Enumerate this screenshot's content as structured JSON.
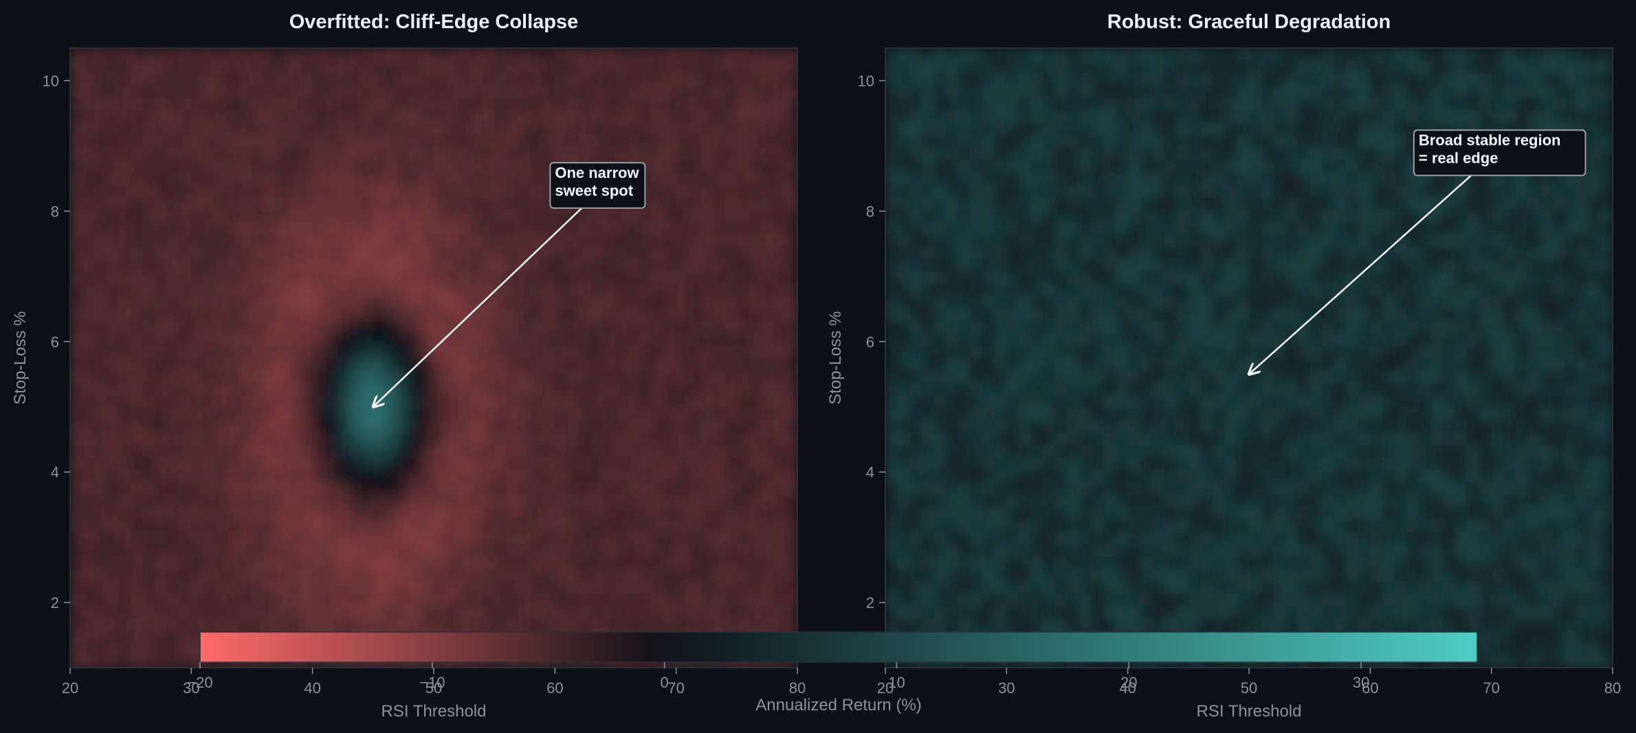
{
  "colors": {
    "background": "#0d1117",
    "negative": "#ff6b6b",
    "neutral": "#0d1117",
    "positive": "#4ecdc4",
    "annotation_border": "#9aa0a8"
  },
  "chart_data": [
    {
      "type": "heatmap",
      "title": "Overfitted: Cliff-Edge Collapse",
      "xlabel": "RSI Threshold",
      "ylabel": "Stop-Loss %",
      "xlim": [
        20,
        80
      ],
      "ylim": [
        1,
        10.5
      ],
      "xticks": [
        20,
        30,
        40,
        50,
        60,
        70,
        80
      ],
      "yticks": [
        2,
        4,
        6,
        8,
        10
      ],
      "surface": {
        "baseline": -5,
        "noise": 1.5,
        "peak": {
          "x": 45,
          "y": 5,
          "value": 30,
          "sx": 3,
          "sy": 0.9
        },
        "moat": {
          "x": 45,
          "y": 5,
          "value": -12,
          "sx": 5.5,
          "sy": 1.8
        }
      },
      "annotation": {
        "lines": [
          "One narrow",
          "sweet spot"
        ],
        "point": [
          45,
          5
        ],
        "text_at": [
          60,
          8.3
        ]
      }
    },
    {
      "type": "heatmap",
      "title": "Robust: Graceful Degradation",
      "xlabel": "RSI Threshold",
      "ylabel": "Stop-Loss %",
      "xlim": [
        20,
        80
      ],
      "ylim": [
        1,
        10.5
      ],
      "xticks": [
        20,
        30,
        40,
        50,
        60,
        70,
        80
      ],
      "yticks": [
        2,
        4,
        6,
        8,
        10
      ],
      "surface": {
        "baseline": 6,
        "noise": 3.5
      },
      "annotation": {
        "lines": [
          "Broad stable region",
          "= real edge"
        ],
        "point": [
          50,
          5.5
        ],
        "text_at": [
          64,
          8.8
        ]
      }
    }
  ],
  "colorbar": {
    "label": "Annualized Return (%)",
    "range": [
      -20,
      35
    ],
    "ticks": [
      -20,
      -10,
      0,
      10,
      20,
      30
    ]
  }
}
